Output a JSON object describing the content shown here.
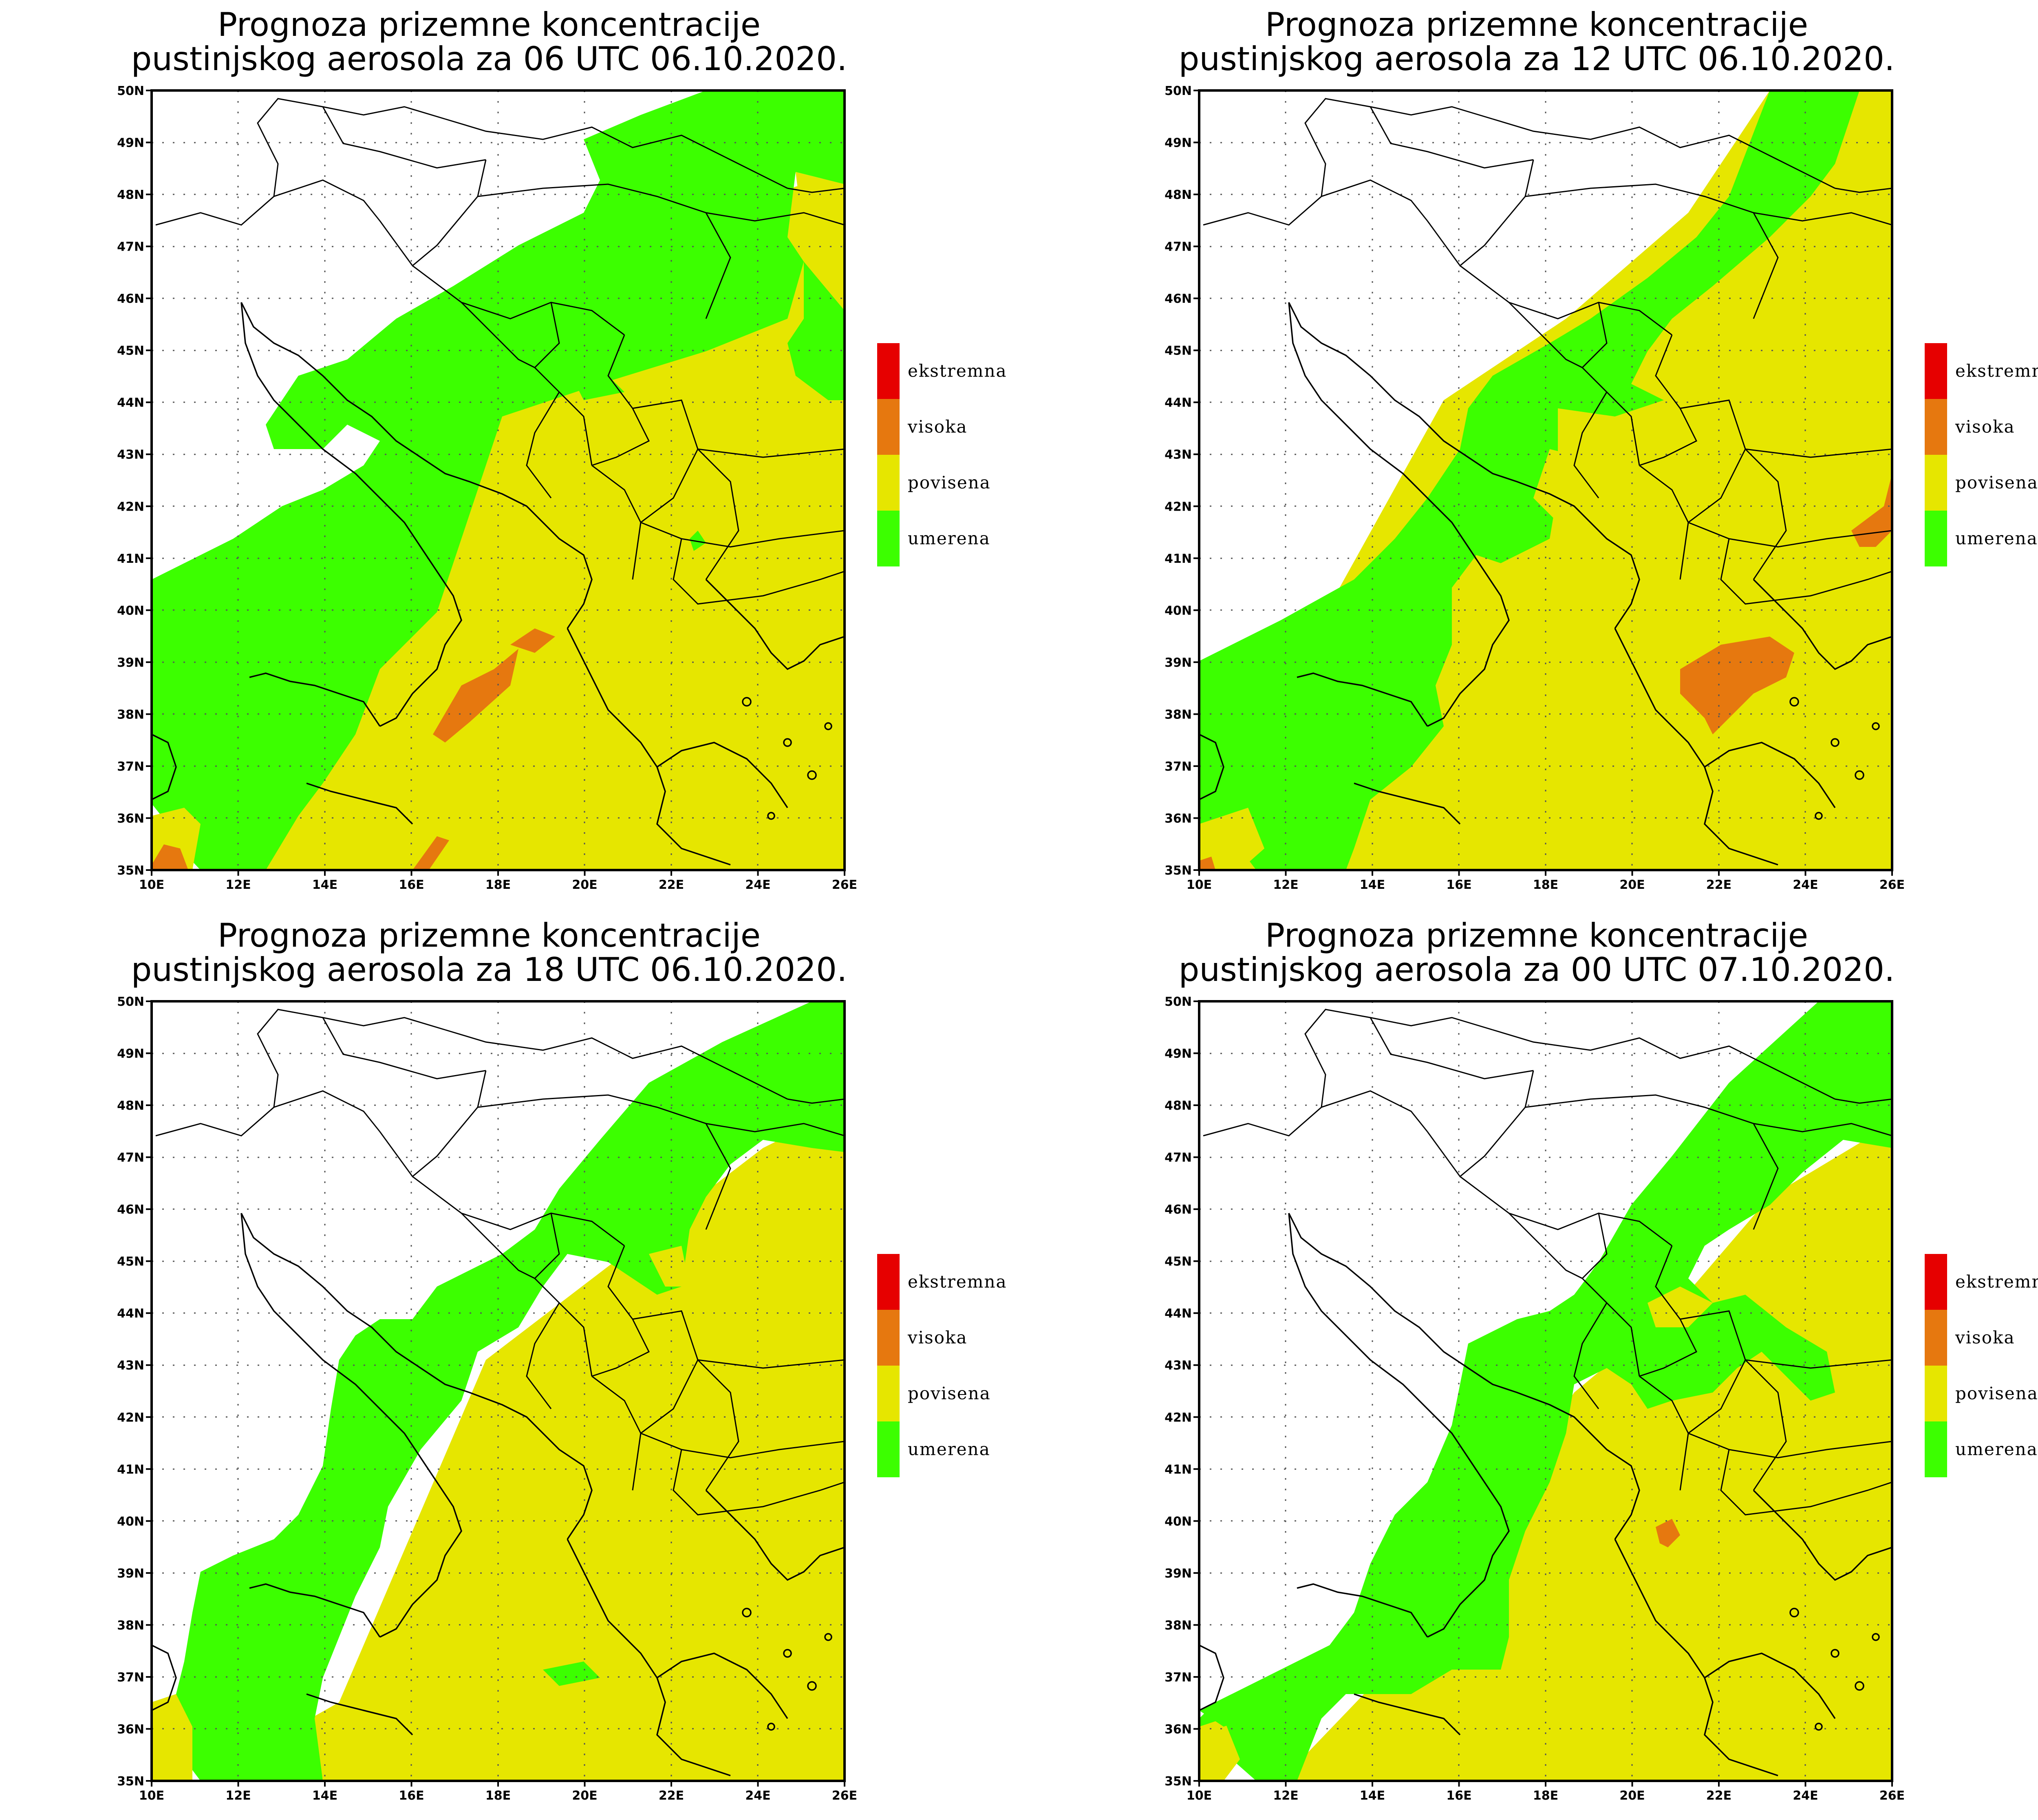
{
  "colors": {
    "ekstremna": "#e60000",
    "visoka": "#e6780f",
    "povisena": "#e6e600",
    "umerena": "#3cff00",
    "background": "#ffffff"
  },
  "legend": [
    "ekstremna",
    "visoka",
    "povisena",
    "umerena"
  ],
  "lon_ticks": [
    "10E",
    "12E",
    "14E",
    "16E",
    "18E",
    "20E",
    "22E",
    "24E",
    "26E"
  ],
  "lat_ticks": [
    "50N",
    "49N",
    "48N",
    "47N",
    "46N",
    "45N",
    "44N",
    "43N",
    "42N",
    "41N",
    "40N",
    "39N",
    "38N",
    "37N",
    "36N",
    "35N"
  ],
  "extent": {
    "lon_min": 10,
    "lon_max": 26,
    "lat_min": 35,
    "lat_max": 50
  },
  "panels": [
    {
      "title_line1": "Prognoza prizemne koncentracije",
      "title_line2": "pustinjskog aerosola za 06 UTC 06.10.2020."
    },
    {
      "title_line1": "Prognoza prizemne koncentracije",
      "title_line2": "pustinjskog aerosola za 12 UTC 06.10.2020."
    },
    {
      "title_line1": "Prognoza prizemne koncentracije",
      "title_line2": "pustinjskog aerosola za 18 UTC 06.10.2020."
    },
    {
      "title_line1": "Prognoza prizemne koncentracije",
      "title_line2": "pustinjskog aerosola za 00 UTC 07.10.2020."
    }
  ]
}
